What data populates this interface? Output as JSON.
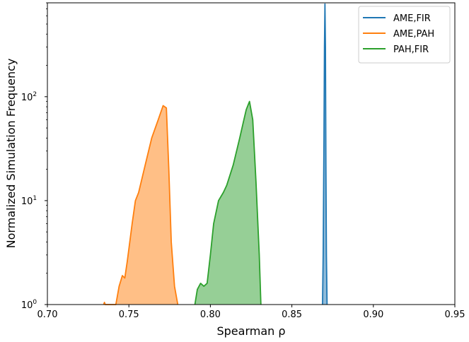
{
  "chart_data": {
    "type": "area",
    "xlabel": "Spearman ρ",
    "ylabel": "Normalized Simulation Frequency",
    "yscale": "log",
    "xlim": [
      0.7,
      0.95
    ],
    "ylim": [
      1,
      800
    ],
    "x_ticks": [
      0.7,
      0.75,
      0.8,
      0.85,
      0.9,
      0.95
    ],
    "x_tick_labels": [
      "0.70",
      "0.75",
      "0.80",
      "0.85",
      "0.90",
      "0.95"
    ],
    "y_ticks": [
      1,
      10,
      100
    ],
    "y_tick_labels": [
      {
        "base": "10",
        "exp": "0"
      },
      {
        "base": "10",
        "exp": "1"
      },
      {
        "base": "10",
        "exp": "2"
      }
    ],
    "legend_position": "top-right",
    "series": [
      {
        "name": "AME,FIR",
        "color": "#1f77b4",
        "fill": "#8fbbd9",
        "x": [
          0.8688,
          0.8692,
          0.8697,
          0.87,
          0.8703,
          0.8706,
          0.8709,
          0.8712,
          0.8716
        ],
        "y": [
          1,
          3,
          40,
          300,
          780,
          300,
          20,
          3,
          1
        ]
      },
      {
        "name": "AME,PAH",
        "color": "#ff7f0e",
        "fill": "#ffbf86",
        "x": [
          0.7345,
          0.735,
          0.7355,
          0.742,
          0.744,
          0.746,
          0.7475,
          0.749,
          0.752,
          0.754,
          0.756,
          0.76,
          0.764,
          0.768,
          0.771,
          0.773,
          0.7745,
          0.776,
          0.778,
          0.78
        ],
        "y": [
          1,
          1.05,
          1,
          1,
          1.5,
          1.9,
          1.8,
          2.6,
          6,
          10,
          12,
          22,
          40,
          60,
          82,
          78,
          20,
          4,
          1.5,
          1
        ]
      },
      {
        "name": "PAH,FIR",
        "color": "#2ca02c",
        "fill": "#96cf96",
        "x": [
          0.7905,
          0.792,
          0.794,
          0.796,
          0.798,
          0.8,
          0.802,
          0.805,
          0.808,
          0.81,
          0.814,
          0.818,
          0.82,
          0.822,
          0.824,
          0.826,
          0.828,
          0.83,
          0.831
        ],
        "y": [
          1,
          1.4,
          1.6,
          1.5,
          1.6,
          3,
          6,
          10,
          12,
          14,
          22,
          40,
          55,
          75,
          90,
          60,
          15,
          3,
          1
        ]
      }
    ]
  }
}
